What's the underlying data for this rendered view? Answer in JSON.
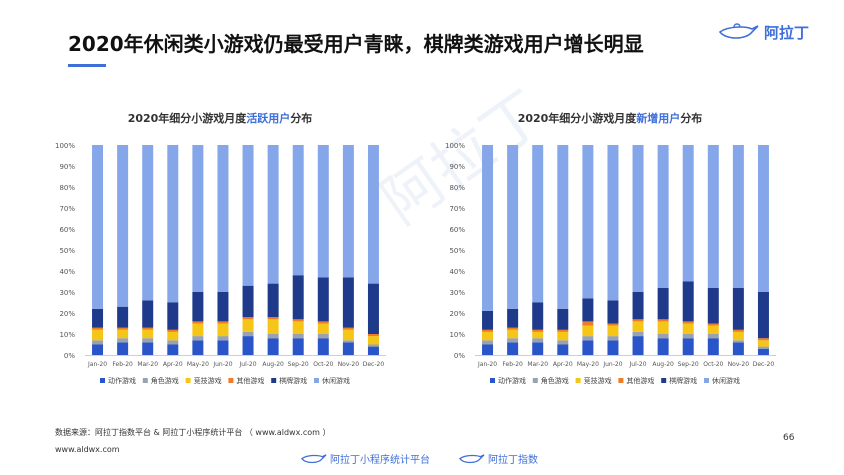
{
  "page": {
    "title": "2020年休闲类小游戏仍最受用户青睐，棋牌类游戏用户增长明显",
    "brand": "阿拉丁",
    "source": "数据来源：阿拉丁指数平台 & 阿拉丁小程序统计平台 （ www.aldwx.com ）",
    "website": "www.aldwx.com",
    "page_number": "66",
    "footer_logo_1": "阿拉丁小程序统计平台",
    "footer_logo_2": "阿拉丁指数",
    "watermark": "阿拉丁",
    "colors": {
      "accent": "#3f6fd8",
      "action": "#2a55c9",
      "role": "#9aa3ad",
      "sports": "#f5c518",
      "other": "#ee7d2b",
      "board": "#1f3a8a",
      "casual": "#86a6ea"
    }
  },
  "chart_data": [
    {
      "type": "bar",
      "stacked": true,
      "title_prefix": "2020年细分小游戏月度",
      "title_highlight": "活跃用户",
      "title_suffix": "分布",
      "categories": [
        "Jan-20",
        "Feb-20",
        "Mar-20",
        "Apr-20",
        "May-20",
        "Jun-20",
        "Jul-20",
        "Aug-20",
        "Sep-20",
        "Oct-20",
        "Nov-20",
        "Dec-20"
      ],
      "ylim": [
        0,
        100
      ],
      "yticks": [
        "0%",
        "10%",
        "20%",
        "30%",
        "40%",
        "50%",
        "60%",
        "70%",
        "80%",
        "90%",
        "100%"
      ],
      "legend_position": "bottom",
      "series": [
        {
          "name": "动作游戏",
          "values": [
            5,
            6,
            6,
            5,
            7,
            7,
            9,
            8,
            8,
            8,
            6,
            4
          ]
        },
        {
          "name": "角色游戏",
          "values": [
            2,
            2,
            2,
            2,
            2,
            2,
            2,
            2,
            2,
            2,
            1,
            1
          ]
        },
        {
          "name": "竞技游戏",
          "values": [
            5,
            4,
            4,
            4,
            6,
            6,
            6,
            7,
            6,
            5,
            5,
            4
          ]
        },
        {
          "name": "其他游戏",
          "values": [
            1,
            1,
            1,
            1,
            1,
            1,
            1,
            1,
            1,
            1,
            1,
            1
          ]
        },
        {
          "name": "棋牌游戏",
          "values": [
            9,
            10,
            13,
            13,
            14,
            14,
            15,
            16,
            21,
            21,
            24,
            24
          ]
        },
        {
          "name": "休闲游戏",
          "values": [
            78,
            77,
            74,
            75,
            70,
            70,
            67,
            66,
            62,
            63,
            63,
            66
          ]
        }
      ]
    },
    {
      "type": "bar",
      "stacked": true,
      "title_prefix": "2020年细分小游戏月度",
      "title_highlight": "新增用户",
      "title_suffix": "分布",
      "categories": [
        "Jan-20",
        "Feb-20",
        "Mar-20",
        "Apr-20",
        "May-20",
        "Jun-20",
        "Jul-20",
        "Aug-20",
        "Sep-20",
        "Oct-20",
        "Nov-20",
        "Dec-20"
      ],
      "ylim": [
        0,
        100
      ],
      "yticks": [
        "0%",
        "10%",
        "20%",
        "30%",
        "40%",
        "50%",
        "60%",
        "70%",
        "80%",
        "90%",
        "100%"
      ],
      "legend_position": "bottom",
      "series": [
        {
          "name": "动作游戏",
          "values": [
            5,
            6,
            6,
            5,
            7,
            7,
            9,
            8,
            8,
            8,
            6,
            3
          ]
        },
        {
          "name": "角色游戏",
          "values": [
            2,
            2,
            2,
            2,
            2,
            2,
            2,
            2,
            2,
            2,
            1,
            1
          ]
        },
        {
          "name": "竞技游戏",
          "values": [
            4,
            4,
            3,
            4,
            5,
            5,
            5,
            6,
            5,
            4,
            4,
            3
          ]
        },
        {
          "name": "其他游戏",
          "values": [
            1,
            1,
            1,
            1,
            2,
            1,
            1,
            1,
            1,
            1,
            1,
            1
          ]
        },
        {
          "name": "棋牌游戏",
          "values": [
            9,
            9,
            13,
            10,
            11,
            11,
            13,
            15,
            19,
            17,
            20,
            22
          ]
        },
        {
          "name": "休闲游戏",
          "values": [
            79,
            78,
            75,
            78,
            73,
            74,
            70,
            68,
            65,
            68,
            68,
            70
          ]
        }
      ]
    }
  ]
}
